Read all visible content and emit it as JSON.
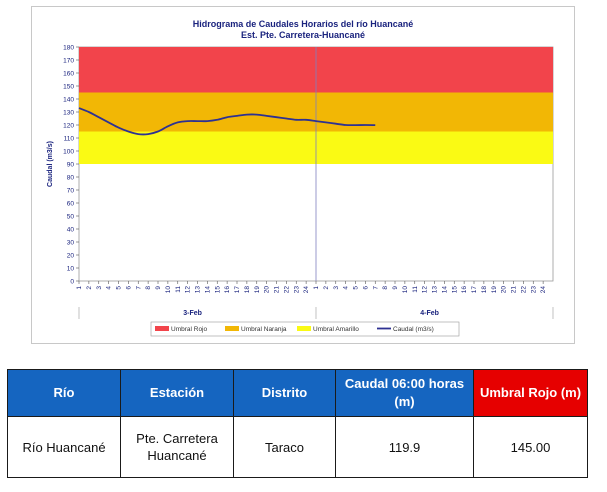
{
  "chart_data": {
    "type": "line",
    "title": "Hidrograma de Caudales Horarios del río Huancané",
    "subtitle": "Est. Pte. Carretera-Huancané",
    "ylabel": "Caudal  (m3/s)",
    "xlabel": "",
    "ylim": [
      0,
      180
    ],
    "ytick_step": 10,
    "x_tick_labels": [
      "1",
      "2",
      "3",
      "4",
      "5",
      "6",
      "7",
      "8",
      "9",
      "10",
      "11",
      "12",
      "13",
      "14",
      "15",
      "16",
      "17",
      "18",
      "19",
      "20",
      "21",
      "22",
      "23",
      "24",
      "1",
      "2",
      "3",
      "4",
      "5",
      "6",
      "7",
      "8",
      "9",
      "10",
      "11",
      "12",
      "13",
      "14",
      "15",
      "16",
      "17",
      "18",
      "19",
      "20",
      "21",
      "22",
      "23",
      "24"
    ],
    "day_labels": [
      "3-Feb",
      "4-Feb"
    ],
    "thresholds": [
      {
        "name": "Umbral Rojo",
        "from": 145,
        "to": 180,
        "color": "#f2444b"
      },
      {
        "name": "Umbral Naranja",
        "from": 115,
        "to": 145,
        "color": "#f2b705"
      },
      {
        "name": "Umbral Amarillo",
        "from": 90,
        "to": 115,
        "color": "#fafa14"
      }
    ],
    "series": [
      {
        "name": "Caudal (m3/s)",
        "color": "#2e3192",
        "x": [
          1,
          2,
          3,
          4,
          5,
          6,
          7,
          8,
          9,
          10,
          11,
          12,
          13,
          14,
          15,
          16,
          17,
          18,
          19,
          20,
          21,
          22,
          23,
          24,
          25,
          26,
          27,
          28,
          29,
          30,
          31
        ],
        "values": [
          133,
          130,
          126,
          122,
          118,
          115,
          113,
          113,
          115,
          119,
          122,
          123,
          123,
          123,
          124,
          126,
          127,
          128,
          128,
          127,
          126,
          125,
          124,
          124,
          123,
          122,
          121,
          120,
          119.9,
          120,
          119.9
        ]
      }
    ],
    "legend": [
      "Umbral Rojo",
      "Umbral Naranja",
      "Umbral Amarillo",
      "Caudal (m3/s)"
    ],
    "legend_position": "bottom",
    "grid": true
  },
  "table": {
    "headers": [
      "Río",
      "Estación",
      "Distrito",
      "Caudal 06:00 horas (m)",
      "Umbral Rojo (m)"
    ],
    "row": [
      "Río Huancané",
      "Pte. Carretera Huancané",
      "Taraco",
      "119.9",
      "145.00"
    ]
  },
  "colors": {
    "header_blue": "#1565c0",
    "header_red": "#e60000",
    "line": "#2e3192"
  }
}
